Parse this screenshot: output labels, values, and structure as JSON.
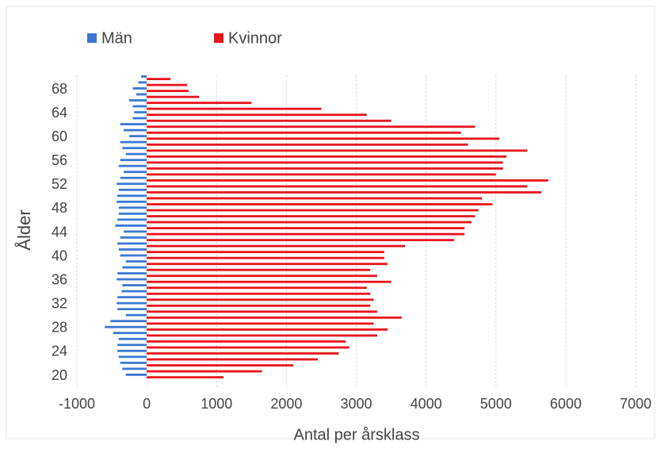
{
  "chart_data": {
    "type": "bar",
    "orientation": "horizontal",
    "x_label": "Antal per årsklass",
    "y_label": "Ålder",
    "categories": [
      20,
      null,
      null,
      null,
      24,
      null,
      null,
      null,
      28,
      null,
      null,
      null,
      32,
      null,
      null,
      null,
      36,
      null,
      null,
      null,
      40,
      null,
      null,
      null,
      44,
      null,
      null,
      null,
      48,
      null,
      null,
      null,
      52,
      null,
      null,
      null,
      56,
      null,
      null,
      null,
      60,
      null,
      null,
      null,
      64,
      null,
      null,
      null,
      68,
      null,
      null
    ],
    "series": [
      {
        "name": "Män",
        "color": "#3a78d4",
        "values": [
          -300,
          -350,
          -380,
          -400,
          -420,
          -420,
          -400,
          -480,
          -600,
          -520,
          -300,
          -420,
          -430,
          -420,
          -360,
          -350,
          -430,
          -420,
          -350,
          -300,
          -380,
          -400,
          -420,
          -380,
          -330,
          -450,
          -420,
          -400,
          -400,
          -430,
          -420,
          -400,
          -430,
          -380,
          -330,
          -400,
          -380,
          -300,
          -350,
          -380,
          -250,
          -330,
          -380,
          -200,
          -180,
          -200,
          -250,
          -150,
          -200,
          -120,
          -80
        ]
      },
      {
        "name": "Kvinnor",
        "color": "#e8141c",
        "values": [
          1100,
          1650,
          2100,
          2450,
          2750,
          2900,
          2850,
          3300,
          3450,
          3250,
          3650,
          3300,
          3200,
          3250,
          3200,
          3150,
          3500,
          3300,
          3200,
          3450,
          3400,
          3400,
          3700,
          4400,
          4550,
          4550,
          4650,
          4700,
          4750,
          4950,
          4800,
          5650,
          5450,
          5750,
          5000,
          5100,
          5100,
          5150,
          5450,
          4600,
          5050,
          4500,
          4700,
          3500,
          3150,
          2500,
          1500,
          750,
          600,
          580,
          340
        ]
      }
    ],
    "xlim": [
      -1000,
      7000
    ],
    "xticks": [
      -1000,
      0,
      1000,
      2000,
      3000,
      4000,
      5000,
      6000,
      7000
    ],
    "grid": true,
    "legend": "top-left"
  }
}
